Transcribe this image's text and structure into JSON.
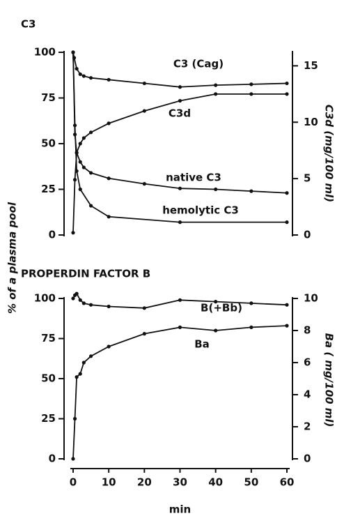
{
  "ylabel": "% of a plasma pool",
  "chart_data": [
    {
      "type": "line",
      "title": "C3",
      "y2label": "C3d (mg/100 ml)",
      "xlim": [
        0,
        60
      ],
      "ylim": [
        0,
        100
      ],
      "yticks": [
        0,
        25,
        50,
        75,
        100
      ],
      "y2lim": [
        0,
        16.2
      ],
      "y2ticks": [
        0,
        5,
        10,
        15
      ],
      "series": [
        {
          "name": "C3 (Cag)",
          "color": "#111111",
          "x": [
            0,
            0.3,
            1,
            2,
            3,
            5,
            10,
            20,
            30,
            40,
            50,
            60
          ],
          "values": [
            100,
            97,
            91,
            88,
            87,
            86,
            85,
            83,
            81,
            82,
            82.5,
            83
          ]
        },
        {
          "name": "C3d",
          "color": "#111111",
          "axis": "y2",
          "x": [
            0,
            0.5,
            1,
            2,
            3,
            5,
            10,
            20,
            30,
            40,
            50,
            60
          ],
          "values": [
            0.2,
            4.9,
            7.3,
            8.1,
            8.6,
            9.1,
            9.9,
            11.0,
            11.9,
            12.5,
            12.5,
            12.5
          ]
        },
        {
          "name": "native C3",
          "color": "#111111",
          "x": [
            0,
            0.5,
            1,
            2,
            3,
            5,
            10,
            20,
            30,
            40,
            50,
            60
          ],
          "values": [
            100,
            55,
            45,
            40,
            37,
            34,
            31,
            28,
            25.5,
            25,
            24,
            23
          ]
        },
        {
          "name": "hemolytic C3",
          "color": "#111111",
          "x": [
            0,
            0.5,
            1,
            2,
            5,
            10,
            30,
            60
          ],
          "values": [
            100,
            60,
            35,
            25,
            16,
            10,
            7,
            7
          ]
        }
      ]
    },
    {
      "type": "line",
      "title": "PROPERDIN FACTOR B",
      "xlabel": "min",
      "y2label": "Ba ( mg/100 ml)",
      "xlim": [
        0,
        60
      ],
      "xticks": [
        0,
        10,
        20,
        30,
        40,
        50,
        60
      ],
      "ylim": [
        0,
        100
      ],
      "yticks": [
        0,
        25,
        50,
        75,
        100
      ],
      "y2lim": [
        0,
        10
      ],
      "y2ticks": [
        0,
        2,
        4,
        6,
        8,
        10
      ],
      "series": [
        {
          "name": "B(+Bb)",
          "color": "#111111",
          "x": [
            0,
            0.5,
            1,
            2,
            3,
            5,
            10,
            20,
            30,
            40,
            50,
            60
          ],
          "values": [
            100,
            102,
            103,
            99,
            97,
            96,
            95,
            94,
            99,
            98,
            97,
            96
          ]
        },
        {
          "name": "Ba",
          "color": "#111111",
          "axis": "y2",
          "x": [
            0,
            0.5,
            1,
            2,
            3,
            5,
            10,
            20,
            30,
            40,
            50,
            60
          ],
          "values": [
            0,
            2.5,
            5.1,
            5.3,
            6,
            6.4,
            7,
            7.8,
            8.2,
            8,
            8.2,
            8.3
          ]
        }
      ]
    }
  ]
}
